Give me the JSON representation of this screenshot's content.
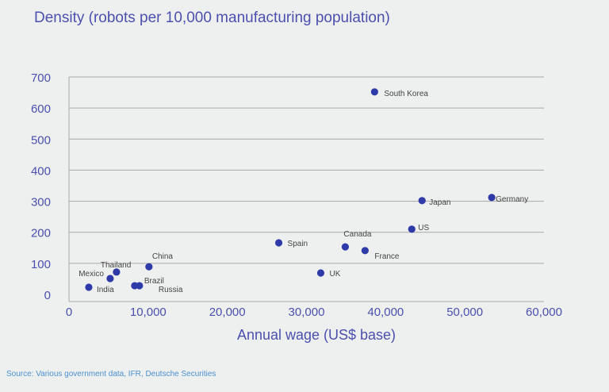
{
  "chart_data": {
    "type": "scatter",
    "title": "Density (robots per 10,000 manufacturing population)",
    "xlabel": "Annual wage (US$ base)",
    "ylabel": "",
    "xlim": [
      0,
      60000
    ],
    "ylim": [
      0,
      700
    ],
    "xticks": [
      "0",
      "10,000",
      "20,000",
      "30,000",
      "40,000",
      "50,000",
      "60,000"
    ],
    "yticks": [
      "0",
      "100",
      "200",
      "300",
      "400",
      "500",
      "600",
      "700"
    ],
    "grid": "horizontal",
    "points": [
      {
        "label": "India",
        "x": 2500,
        "y": 23
      },
      {
        "label": "Mexico",
        "x": 5200,
        "y": 51
      },
      {
        "label": "Thailand",
        "x": 6000,
        "y": 72
      },
      {
        "label": "China",
        "x": 10100,
        "y": 89
      },
      {
        "label": "Brazil",
        "x": 8300,
        "y": 28
      },
      {
        "label": "Russia",
        "x": 8900,
        "y": 28
      },
      {
        "label": "Spain",
        "x": 26500,
        "y": 166
      },
      {
        "label": "UK",
        "x": 31800,
        "y": 69
      },
      {
        "label": "Canada",
        "x": 34900,
        "y": 153
      },
      {
        "label": "France",
        "x": 37400,
        "y": 141
      },
      {
        "label": "US",
        "x": 43300,
        "y": 210
      },
      {
        "label": "Japan",
        "x": 44600,
        "y": 302
      },
      {
        "label": "Germany",
        "x": 53400,
        "y": 312
      },
      {
        "label": "South Korea",
        "x": 38600,
        "y": 652
      }
    ],
    "colors": {
      "marker": "#2f3aa9",
      "axis_text": "#4b4fae",
      "grid": "#a8a8a8"
    }
  },
  "source": "Source: Various government data, IFR, Deutsche Securities"
}
